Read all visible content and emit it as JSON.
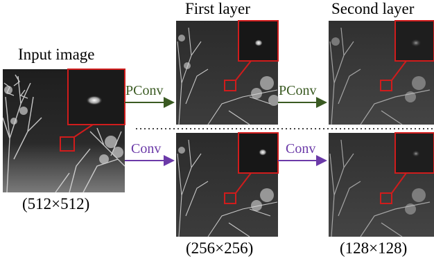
{
  "columns": {
    "input": {
      "title": "Input image",
      "size": "(512×512)"
    },
    "first": {
      "title": "First layer",
      "size": "(256×256)"
    },
    "second": {
      "title": "Second layer",
      "size": "(128×128)"
    }
  },
  "operations": {
    "top_left": "PConv",
    "top_right": "PConv",
    "bottom_left": "Conv",
    "bottom_right": "Conv"
  },
  "colors": {
    "pconv": "#3a5a22",
    "conv": "#6b3aa8",
    "zoom_box": "#d01c1c"
  }
}
